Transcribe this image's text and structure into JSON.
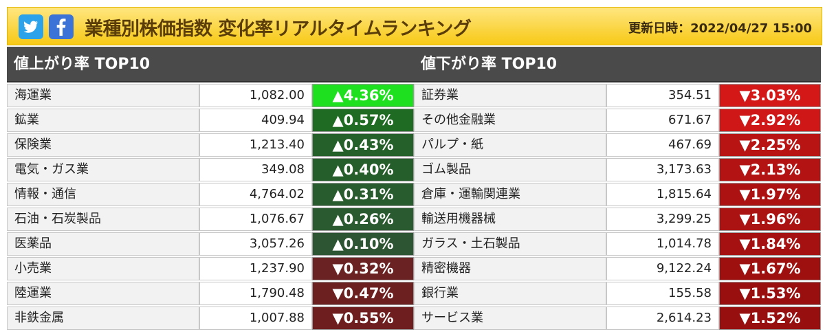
{
  "header": {
    "title": "業種別株価指数 変化率リアルタイムランキング",
    "updated": "更新日時：2022/04/27 15:00",
    "social": [
      {
        "name": "twitter",
        "icon": "twitter-bird-icon",
        "color": "#2ba2ea"
      },
      {
        "name": "facebook",
        "icon": "facebook-f-icon",
        "color": "#3b74d6"
      }
    ]
  },
  "gainers": {
    "title": "値上がり率 TOP10",
    "rows": [
      {
        "name": "海運業",
        "value": "1,082.00",
        "change": "▲4.36%",
        "color": "#1ee01e"
      },
      {
        "name": "鉱業",
        "value": "409.94",
        "change": "▲0.57%",
        "color": "#1f6b23"
      },
      {
        "name": "保険業",
        "value": "1,213.40",
        "change": "▲0.43%",
        "color": "#255f2a"
      },
      {
        "name": "電気・ガス業",
        "value": "349.08",
        "change": "▲0.40%",
        "color": "#265e2b"
      },
      {
        "name": "情報・通信",
        "value": "4,764.02",
        "change": "▲0.31%",
        "color": "#285b2d"
      },
      {
        "name": "石油・石炭製品",
        "value": "1,076.67",
        "change": "▲0.26%",
        "color": "#2a5a2f"
      },
      {
        "name": "医薬品",
        "value": "3,057.26",
        "change": "▲0.10%",
        "color": "#2d5533"
      },
      {
        "name": "小売業",
        "value": "1,237.90",
        "change": "▼0.32%",
        "color": "#6a2222"
      },
      {
        "name": "陸運業",
        "value": "1,790.48",
        "change": "▼0.47%",
        "color": "#6c2020"
      },
      {
        "name": "非鉄金属",
        "value": "1,007.88",
        "change": "▼0.55%",
        "color": "#6e1e1e"
      }
    ]
  },
  "losers": {
    "title": "値下がり率 TOP10",
    "rows": [
      {
        "name": "証券業",
        "value": "354.51",
        "change": "▼3.03%",
        "color": "#d41818"
      },
      {
        "name": "その他金融業",
        "value": "671.67",
        "change": "▼2.92%",
        "color": "#cf1717"
      },
      {
        "name": "パルプ・紙",
        "value": "467.69",
        "change": "▼2.25%",
        "color": "#b81414"
      },
      {
        "name": "ゴム製品",
        "value": "3,173.63",
        "change": "▼2.13%",
        "color": "#b31313"
      },
      {
        "name": "倉庫・運輸関連業",
        "value": "1,815.64",
        "change": "▼1.97%",
        "color": "#ac1212"
      },
      {
        "name": "輸送用機器械",
        "value": "3,299.25",
        "change": "▼1.96%",
        "color": "#ab1212"
      },
      {
        "name": "ガラス・土石製品",
        "value": "1,014.78",
        "change": "▼1.84%",
        "color": "#a51111"
      },
      {
        "name": "精密機器",
        "value": "9,122.24",
        "change": "▼1.67%",
        "color": "#9e1010"
      },
      {
        "name": "銀行業",
        "value": "155.58",
        "change": "▼1.53%",
        "color": "#990f0f"
      },
      {
        "name": "サービス業",
        "value": "2,614.23",
        "change": "▼1.52%",
        "color": "#980f0f"
      }
    ]
  }
}
